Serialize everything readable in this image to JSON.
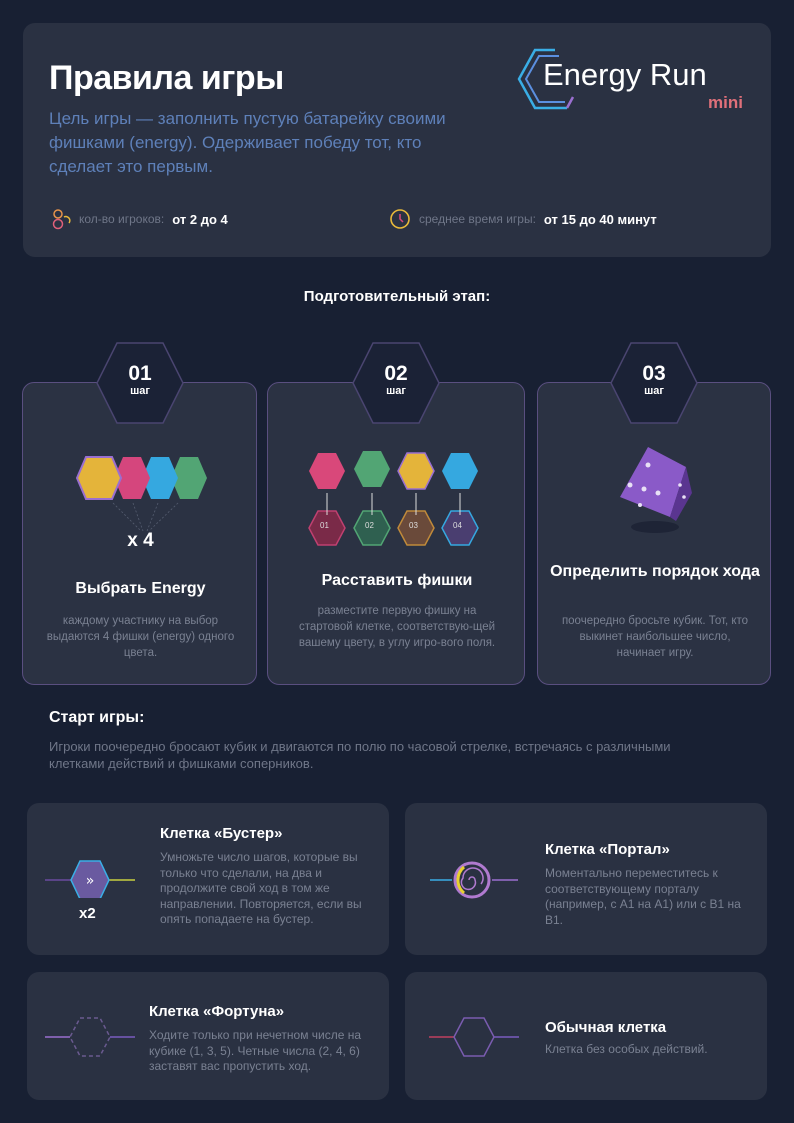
{
  "header": {
    "title": "Правила игры",
    "subtitle": "Цель игры — заполнить пустую батарейку своими фишками (energy). Одерживает победу тот, кто сделает это первым.",
    "logo": {
      "name": "Energy Run",
      "suffix": "mini"
    },
    "players": {
      "icon": "players-icon",
      "label": "кол-во игроков:",
      "value": "от 2 до 4"
    },
    "time": {
      "icon": "clock-icon",
      "label": "среднее время игры:",
      "value": "от 15 до 40 минут"
    }
  },
  "prep": {
    "title": "Подготовительный этап:",
    "steps": [
      {
        "num": "01",
        "word": "шаг",
        "title": "Выбрать Energy",
        "multiplier": "x 4",
        "text": "каждому участнику на выбор выдаются 4 фишки (energy) одного цвета."
      },
      {
        "num": "02",
        "word": "шаг",
        "title": "Расставить фишки",
        "chips": [
          "01",
          "02",
          "03",
          "04"
        ],
        "text": "разместите первую фишку на стартовой клетке, соответствую-щей вашему цвету, в углу игро-вого поля."
      },
      {
        "num": "03",
        "word": "шаг",
        "title": "Определить порядок хода",
        "text": "поочередно бросьте кубик. Тот, кто выкинет наибольшее число, начинает игру."
      }
    ]
  },
  "start": {
    "title": "Старт игры:",
    "text": "Игроки поочередно бросают кубик и двигаются по полю по часовой стрелке, встречаясь с различными клетками действий и фишками соперников."
  },
  "cells": [
    {
      "title": "Клетка «Бустер»",
      "badge": "x2",
      "icon": "booster-hex-icon",
      "text": "Умножьте число шагов, которые вы только что сделали, на два и продолжите свой ход в том же направлении. Повторяется, если вы опять попадаете на бустер."
    },
    {
      "title": "Клетка «Портал»",
      "icon": "portal-spiral-icon",
      "text": "Моментально переместитесь к соответствующему порталу (например, с А1 на А1) или с В1 на В1."
    },
    {
      "title": "Клетка «Фортуна»",
      "icon": "fortune-dashed-hex-icon",
      "text": "Ходите только при нечетном числе на кубике (1, 3, 5). Четные числа (2, 4, 6) заставят вас пропустить ход."
    },
    {
      "title": "Обычная клетка",
      "icon": "plain-hex-icon",
      "text": "Клетка без особых действий."
    }
  ],
  "colors": {
    "background": "#182033",
    "card": "#2a3142",
    "accent_blue": "#5e80b9",
    "yellow": "#e8b93a",
    "pink": "#d9487a",
    "cyan": "#3aaee6",
    "green": "#4f9d70",
    "purple": "#7a5cc0"
  }
}
